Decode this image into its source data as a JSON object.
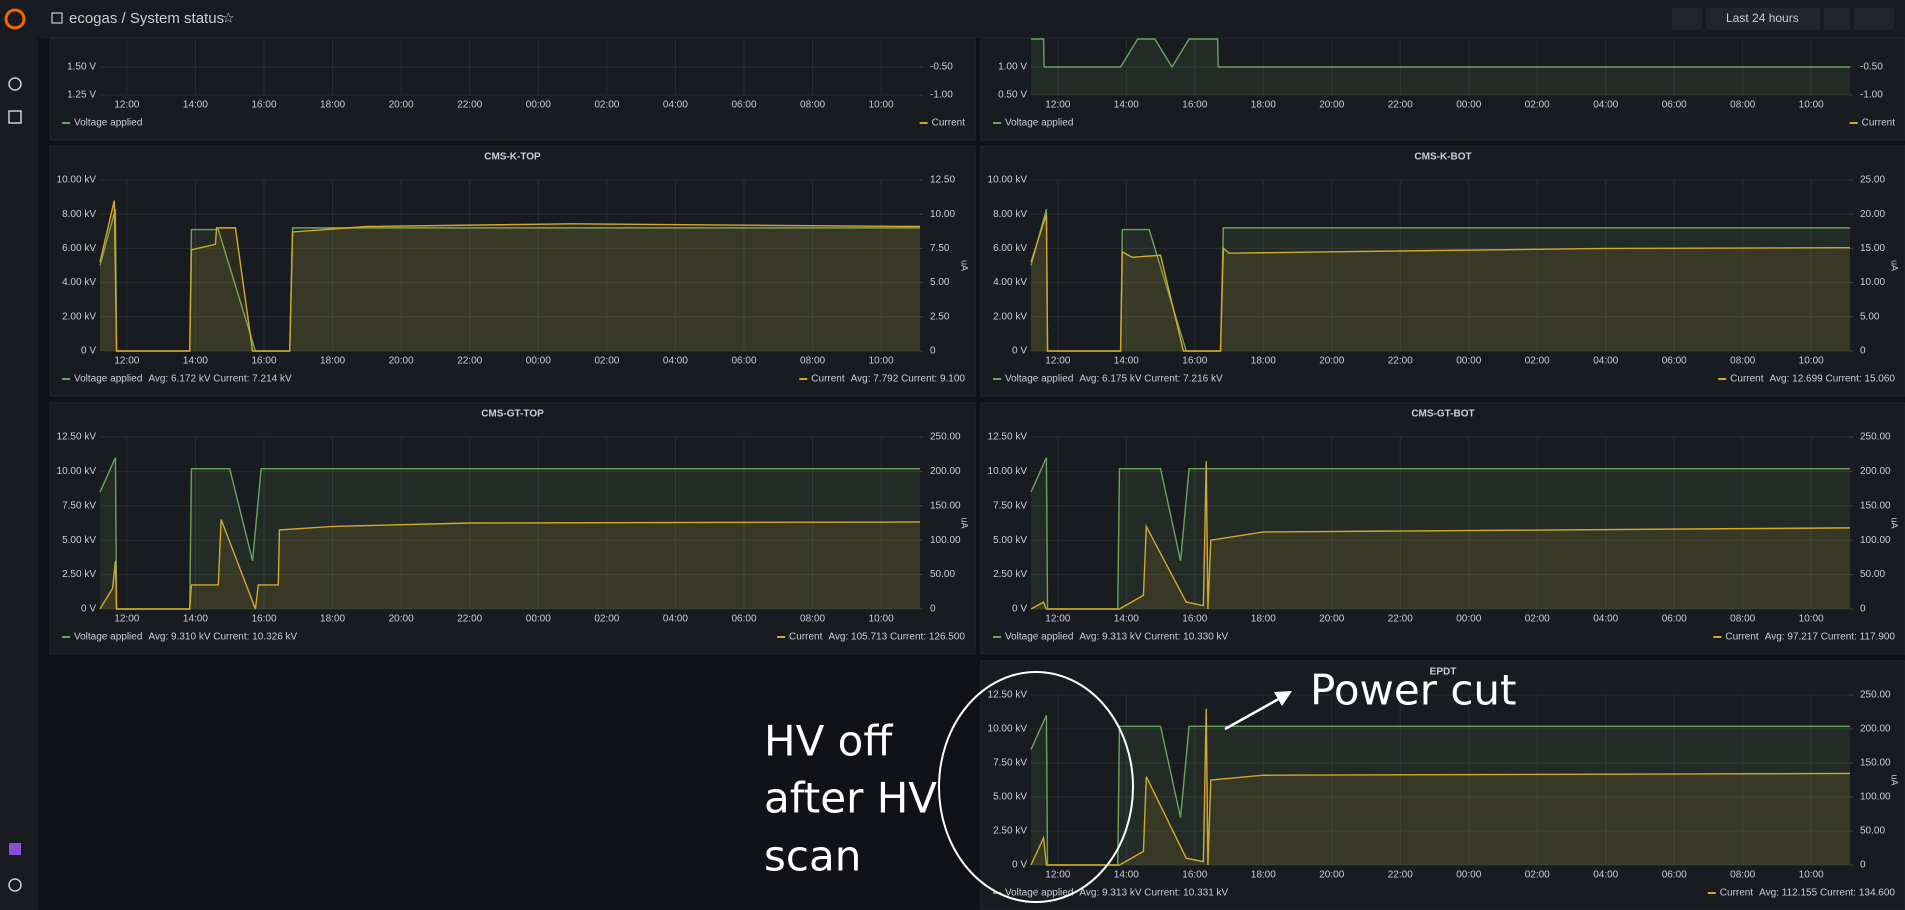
{
  "topbar": {
    "breadcrumb": "ecogas / System status",
    "time_range": "Last 24 hours"
  },
  "annotations": {
    "power_cut": "Power cut",
    "hv_off": [
      "HV off",
      "after HV",
      "scan"
    ]
  },
  "panels": [
    {
      "ylim": [
        1.25,
        1.75
      ],
      "yticks": [
        {
          "value": 1.25,
          "label": "1.25 V"
        },
        {
          "value": 1.5,
          "label": "1.50 V"
        }
      ],
      "y2lim": [
        -1,
        0
      ],
      "y2ticks": [
        {
          "value": -1,
          "label": "-1.00"
        },
        {
          "value": -0.5,
          "label": "-0.50"
        }
      ],
      "xlim": [
        "11:13",
        "11:08"
      ],
      "xticks": [
        "12:00",
        "14:00",
        "16:00",
        "18:00",
        "20:00",
        "22:00",
        "00:00",
        "02:00",
        "04:00",
        "06:00",
        "08:00",
        "10:00"
      ],
      "series": [
        {
          "name": "Voltage applied",
          "color": "#6aa35d"
        },
        {
          "name": "Current",
          "color": "#d4a72c",
          "axis": "y2"
        }
      ]
    },
    {
      "ylim": [
        0.5,
        1.5
      ],
      "yticks": [
        {
          "value": 0.5,
          "label": "0.50 V"
        },
        {
          "value": 1,
          "label": "1.00 V"
        }
      ],
      "y2lim": [
        -1,
        0
      ],
      "y2ticks": [
        {
          "value": -1,
          "label": "-1.00"
        },
        {
          "value": -0.5,
          "label": "-0.50"
        }
      ],
      "xlim": [
        "11:13",
        "11:08"
      ],
      "xticks": [
        "12:00",
        "14:00",
        "16:00",
        "18:00",
        "20:00",
        "22:00",
        "00:00",
        "02:00",
        "04:00",
        "06:00",
        "08:00",
        "10:00"
      ],
      "series": [
        {
          "name": "Voltage applied",
          "color": "#6aa35d",
          "x": [
            "11:13",
            "11:35",
            "11:36",
            "13:50",
            "14:20",
            "14:50",
            "15:20",
            "15:50",
            "16:40",
            "16:41",
            "11:08"
          ],
          "values": [
            1.5,
            1.5,
            1,
            1,
            1.5,
            1.5,
            1,
            1.5,
            1.5,
            1,
            1
          ]
        },
        {
          "name": "Current",
          "color": "#d4a72c",
          "axis": "y2"
        }
      ]
    },
    {
      "title": "CMS-K-TOP",
      "ylim": [
        0,
        10
      ],
      "yticks": [
        {
          "value": 0,
          "label": "0 V"
        },
        {
          "value": 2,
          "label": "2.00 kV"
        },
        {
          "value": 4,
          "label": "4.00 kV"
        },
        {
          "value": 6,
          "label": "6.00 kV"
        },
        {
          "value": 8,
          "label": "8.00 kV"
        },
        {
          "value": 10,
          "label": "10.00 kV"
        }
      ],
      "y2lim": [
        0,
        12.5
      ],
      "y2ticks": [
        0,
        {
          "value": 2.5,
          "label": "2.50"
        },
        {
          "value": 5,
          "label": "5.00"
        },
        {
          "value": 7.5,
          "label": "7.50"
        },
        {
          "value": 10,
          "label": "10.00"
        },
        {
          "value": 12.5,
          "label": "12.50"
        }
      ],
      "y2_label": "uA",
      "xlim": [
        "11:13",
        "11:08"
      ],
      "xticks": [
        "12:00",
        "14:00",
        "16:00",
        "18:00",
        "20:00",
        "22:00",
        "00:00",
        "02:00",
        "04:00",
        "06:00",
        "08:00",
        "10:00"
      ],
      "series": [
        {
          "name": "Voltage applied",
          "legend_stats": "Avg: 6.172 kV  Current: 7.214 kV",
          "color": "#6aa35d",
          "x": [
            "11:13",
            "11:40",
            "11:42",
            "13:50",
            "13:53",
            "14:40",
            "15:45",
            "16:45",
            "16:50",
            "11:08"
          ],
          "values": [
            5,
            8.3,
            0,
            0,
            7.1,
            7.1,
            0,
            0,
            7.2,
            7.2
          ]
        },
        {
          "name": "Current",
          "legend_stats": "Avg: 7.792  Current: 9.100",
          "color": "#d4a72c",
          "axis": "y2",
          "x": [
            "11:13",
            "11:38",
            "11:42",
            "13:50",
            "13:53",
            "14:35",
            "14:37",
            "15:10",
            "15:40",
            "16:45",
            "16:50",
            "19:00",
            "01:00",
            "11:08"
          ],
          "values": [
            6.5,
            11,
            0,
            0,
            7.4,
            7.8,
            9,
            9,
            0,
            0,
            8.7,
            9.1,
            9.3,
            9.1
          ]
        }
      ]
    },
    {
      "title": "CMS-K-BOT",
      "ylim": [
        0,
        10
      ],
      "yticks": [
        {
          "value": 0,
          "label": "0 V"
        },
        {
          "value": 2,
          "label": "2.00 kV"
        },
        {
          "value": 4,
          "label": "4.00 kV"
        },
        {
          "value": 6,
          "label": "6.00 kV"
        },
        {
          "value": 8,
          "label": "8.00 kV"
        },
        {
          "value": 10,
          "label": "10.00 kV"
        }
      ],
      "y2lim": [
        0,
        25
      ],
      "y2ticks": [
        0,
        {
          "value": 5,
          "label": "5.00"
        },
        {
          "value": 10,
          "label": "10.00"
        },
        {
          "value": 15,
          "label": "15.00"
        },
        {
          "value": 20,
          "label": "20.00"
        },
        {
          "value": 25,
          "label": "25.00"
        }
      ],
      "y2_label": "uA",
      "xlim": [
        "11:13",
        "11:08"
      ],
      "xticks": [
        "12:00",
        "14:00",
        "16:00",
        "18:00",
        "20:00",
        "22:00",
        "00:00",
        "02:00",
        "04:00",
        "06:00",
        "08:00",
        "10:00"
      ],
      "series": [
        {
          "name": "Voltage applied",
          "legend_stats": "Avg: 6.175 kV  Current: 7.216 kV",
          "color": "#6aa35d",
          "x": [
            "11:13",
            "11:40",
            "11:42",
            "13:50",
            "13:53",
            "14:40",
            "15:45",
            "16:45",
            "16:50",
            "11:08"
          ],
          "values": [
            5,
            8.3,
            0,
            0,
            7.1,
            7.1,
            0,
            0,
            7.2,
            7.2
          ]
        },
        {
          "name": "Current",
          "legend_stats": "Avg: 12.699  Current: 15.060",
          "color": "#d4a72c",
          "axis": "y2",
          "x": [
            "11:13",
            "11:40",
            "11:42",
            "13:50",
            "13:53",
            "14:10",
            "15:00",
            "15:40",
            "16:45",
            "16:50",
            "17:00",
            "20:00",
            "04:00",
            "11:08"
          ],
          "values": [
            13,
            20,
            0,
            0,
            14.5,
            13.7,
            14,
            0,
            0,
            15,
            14.3,
            14.5,
            15,
            15.1
          ]
        }
      ]
    },
    {
      "title": "CMS-GT-TOP",
      "ylim": [
        0,
        12.5
      ],
      "yticks": [
        {
          "value": 0,
          "label": "0 V"
        },
        {
          "value": 2.5,
          "label": "2.50 kV"
        },
        {
          "value": 5,
          "label": "5.00 kV"
        },
        {
          "value": 7.5,
          "label": "7.50 kV"
        },
        {
          "value": 10,
          "label": "10.00 kV"
        },
        {
          "value": 12.5,
          "label": "12.50 kV"
        }
      ],
      "y2lim": [
        0,
        250
      ],
      "y2ticks": [
        0,
        {
          "value": 50,
          "label": "50.00"
        },
        {
          "value": 100,
          "label": "100.00"
        },
        {
          "value": 150,
          "label": "150.00"
        },
        {
          "value": 200,
          "label": "200.00"
        },
        {
          "value": 250,
          "label": "250.00"
        }
      ],
      "y2_label": "uA",
      "xlim": [
        "11:13",
        "11:08"
      ],
      "xticks": [
        "12:00",
        "14:00",
        "16:00",
        "18:00",
        "20:00",
        "22:00",
        "00:00",
        "02:00",
        "04:00",
        "06:00",
        "08:00",
        "10:00"
      ],
      "series": [
        {
          "name": "Voltage applied",
          "legend_stats": "Avg: 9.310 kV  Current: 10.326 kV",
          "color": "#6aa35d",
          "x": [
            "11:13",
            "11:40",
            "11:42",
            "13:50",
            "13:53",
            "15:00",
            "15:40",
            "15:55",
            "16:25",
            "11:08"
          ],
          "values": [
            8.5,
            11,
            0,
            0,
            10.2,
            10.2,
            3.5,
            10.2,
            10.2,
            10.2
          ]
        },
        {
          "name": "Current",
          "legend_stats": "Avg: 105.713  Current: 126.500",
          "color": "#d4a72c",
          "axis": "y2",
          "x": [
            "11:13",
            "11:35",
            "11:40",
            "11:42",
            "13:50",
            "13:53",
            "14:40",
            "14:45",
            "15:45",
            "15:50",
            "16:25",
            "16:27",
            "18:00",
            "22:00",
            "11:08"
          ],
          "values": [
            0,
            30,
            70,
            0,
            0,
            35,
            35,
            130,
            0,
            35,
            35,
            115,
            120,
            125,
            126.5
          ]
        }
      ]
    },
    {
      "title": "CMS-GT-BOT",
      "ylim": [
        0,
        12.5
      ],
      "yticks": [
        {
          "value": 0,
          "label": "0 V"
        },
        {
          "value": 2.5,
          "label": "2.50 kV"
        },
        {
          "value": 5,
          "label": "5.00 kV"
        },
        {
          "value": 7.5,
          "label": "7.50 kV"
        },
        {
          "value": 10,
          "label": "10.00 kV"
        },
        {
          "value": 12.5,
          "label": "12.50 kV"
        }
      ],
      "y2lim": [
        0,
        250
      ],
      "y2ticks": [
        0,
        {
          "value": 50,
          "label": "50.00"
        },
        {
          "value": 100,
          "label": "100.00"
        },
        {
          "value": 150,
          "label": "150.00"
        },
        {
          "value": 200,
          "label": "200.00"
        },
        {
          "value": 250,
          "label": "250.00"
        }
      ],
      "y2_label": "uA",
      "xlim": [
        "11:13",
        "11:08"
      ],
      "xticks": [
        "12:00",
        "14:00",
        "16:00",
        "18:00",
        "20:00",
        "22:00",
        "00:00",
        "02:00",
        "04:00",
        "06:00",
        "08:00",
        "10:00"
      ],
      "series": [
        {
          "name": "Voltage applied",
          "legend_stats": "Avg: 9.313 kV  Current: 10.330 kV",
          "color": "#6aa35d",
          "x": [
            "11:13",
            "11:40",
            "11:42",
            "13:45",
            "13:48",
            "15:00",
            "15:35",
            "15:50",
            "16:25",
            "11:08"
          ],
          "values": [
            8.5,
            11,
            0,
            0,
            10.2,
            10.2,
            3.5,
            10.2,
            10.2,
            10.2
          ]
        },
        {
          "name": "Current",
          "legend_stats": "Avg: 97.217  Current: 117.900",
          "color": "#d4a72c",
          "axis": "y2",
          "x": [
            "11:13",
            "11:35",
            "11:40",
            "13:48",
            "14:30",
            "14:35",
            "15:45",
            "16:15",
            "16:20",
            "16:23",
            "16:28",
            "18:00",
            "11:08"
          ],
          "values": [
            0,
            10,
            0,
            0,
            20,
            120,
            10,
            5,
            215,
            0,
            100,
            112,
            117.9
          ]
        }
      ]
    },
    {
      "title": "EPDT",
      "ylim": [
        0,
        12.5
      ],
      "yticks": [
        {
          "value": 0,
          "label": "0 V"
        },
        {
          "value": 2.5,
          "label": "2.50 kV"
        },
        {
          "value": 5,
          "label": "5.00 kV"
        },
        {
          "value": 7.5,
          "label": "7.50 kV"
        },
        {
          "value": 10,
          "label": "10.00 kV"
        },
        {
          "value": 12.5,
          "label": "12.50 kV"
        }
      ],
      "y2lim": [
        0,
        250
      ],
      "y2ticks": [
        0,
        {
          "value": 50,
          "label": "50.00"
        },
        {
          "value": 100,
          "label": "100.00"
        },
        {
          "value": 150,
          "label": "150.00"
        },
        {
          "value": 200,
          "label": "200.00"
        },
        {
          "value": 250,
          "label": "250.00"
        }
      ],
      "y2_label": "uA",
      "xlim": [
        "11:13",
        "11:08"
      ],
      "xticks": [
        "12:00",
        "14:00",
        "16:00",
        "18:00",
        "20:00",
        "22:00",
        "00:00",
        "02:00",
        "04:00",
        "06:00",
        "08:00",
        "10:00"
      ],
      "series": [
        {
          "name": "Voltage applied",
          "legend_stats": "Avg: 9.313 kV  Current: 10.331 kV",
          "color": "#6aa35d",
          "x": [
            "11:13",
            "11:40",
            "11:42",
            "13:45",
            "13:48",
            "15:00",
            "15:35",
            "15:50",
            "16:25",
            "11:08"
          ],
          "values": [
            8.5,
            11,
            0,
            0,
            10.2,
            10.2,
            3.5,
            10.2,
            10.2,
            10.2
          ]
        },
        {
          "name": "Current",
          "legend_stats": "Avg: 112.155  Current: 134.600",
          "color": "#d4a72c",
          "axis": "y2",
          "x": [
            "11:13",
            "11:35",
            "11:40",
            "13:48",
            "14:30",
            "14:35",
            "15:45",
            "16:15",
            "16:20",
            "16:23",
            "16:28",
            "18:00",
            "11:08"
          ],
          "values": [
            0,
            40,
            0,
            0,
            20,
            130,
            10,
            5,
            230,
            0,
            125,
            132,
            134.6
          ]
        }
      ]
    }
  ]
}
